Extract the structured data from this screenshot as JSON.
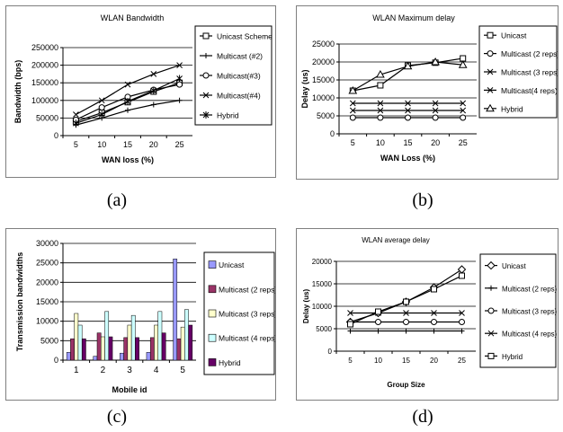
{
  "captions": [
    "(a)",
    "(b)",
    "(c)",
    "(d)"
  ],
  "chart_data": [
    {
      "type": "line",
      "title": "WLAN Bandwidth",
      "xlabel": "WAN loss (%)",
      "ylabel": "Bandwidth (bps)",
      "x": [
        5,
        10,
        15,
        20,
        25
      ],
      "xticks": [
        "5",
        "10",
        "15",
        "20",
        "25"
      ],
      "ylim": [
        0,
        250000
      ],
      "yticks": [
        "0",
        "50000",
        "100000",
        "150000",
        "200000",
        "250000"
      ],
      "grid": true,
      "legend": "right",
      "series": [
        {
          "name": "Unicast Scheme",
          "marker": "square",
          "values": [
            40000,
            65000,
            95000,
            125000,
            150000
          ]
        },
        {
          "name": "Multicast (#2)",
          "marker": "plus",
          "values": [
            30000,
            50000,
            72000,
            88000,
            100000
          ]
        },
        {
          "name": "Multicast(#3)",
          "marker": "circle",
          "values": [
            45000,
            80000,
            110000,
            130000,
            145000
          ]
        },
        {
          "name": "Multicast(#4)",
          "marker": "x",
          "values": [
            60000,
            100000,
            145000,
            175000,
            200000
          ]
        },
        {
          "name": "Hybrid",
          "marker": "star",
          "values": [
            35000,
            60000,
            97000,
            128000,
            162000
          ]
        }
      ]
    },
    {
      "type": "line",
      "title": "WLAN Maximum delay",
      "xlabel": "WAN Loss (%)",
      "ylabel": "Delay (us)",
      "x": [
        5,
        10,
        15,
        20,
        25
      ],
      "xticks": [
        "5",
        "10",
        "15",
        "20",
        "25"
      ],
      "ylim": [
        0,
        25000
      ],
      "yticks": [
        "0",
        "5000",
        "10000",
        "15000",
        "20000",
        "25000"
      ],
      "grid": true,
      "legend": "right",
      "series": [
        {
          "name": "Unicast",
          "marker": "square",
          "values": [
            12000,
            13500,
            19000,
            19800,
            21000
          ]
        },
        {
          "name": "Multicast (2 reps)",
          "marker": "circle",
          "values": [
            4500,
            4500,
            4500,
            4500,
            4500
          ]
        },
        {
          "name": "Multicast (3 reps)",
          "marker": "x",
          "values": [
            8500,
            8500,
            8500,
            8500,
            8500
          ]
        },
        {
          "name": "Multicast(4 reps)",
          "marker": "x",
          "values": [
            6500,
            6500,
            6500,
            6500,
            6500
          ]
        },
        {
          "name": "Hybrid",
          "marker": "triangle",
          "values": [
            12000,
            16500,
            18800,
            20000,
            19200
          ]
        }
      ]
    },
    {
      "type": "bar",
      "title": "",
      "xlabel": "Mobile id",
      "ylabel": "Transmission bandwidths",
      "categories": [
        "1",
        "2",
        "3",
        "4",
        "5"
      ],
      "ylim": [
        0,
        30000
      ],
      "yticks": [
        "0",
        "5000",
        "10000",
        "15000",
        "20000",
        "25000",
        "30000"
      ],
      "grid": true,
      "legend": "right",
      "series": [
        {
          "name": "Unicast",
          "color": "#9999ff",
          "values": [
            2000,
            1000,
            1800,
            2000,
            26000
          ]
        },
        {
          "name": "Multicast (2 reps)",
          "color": "#993366",
          "values": [
            5500,
            7000,
            5800,
            5800,
            5500
          ]
        },
        {
          "name": "Multicast (3 reps)",
          "color": "#ffffcc",
          "values": [
            12000,
            6000,
            9000,
            9000,
            8500
          ]
        },
        {
          "name": "Multicast (4 reps)",
          "color": "#ccffff",
          "values": [
            9000,
            12500,
            11500,
            12500,
            13000
          ]
        },
        {
          "name": "Hybrid",
          "color": "#660066",
          "values": [
            5500,
            6000,
            5800,
            7000,
            9000
          ]
        }
      ]
    },
    {
      "type": "line",
      "title": "WLAN average delay",
      "xlabel": "Group Size",
      "ylabel": "Delay (us)",
      "x": [
        5,
        10,
        15,
        20,
        25
      ],
      "xticks": [
        "5",
        "10",
        "15",
        "20",
        "25"
      ],
      "ylim": [
        0,
        20000
      ],
      "yticks": [
        "0",
        "5000",
        "10000",
        "15000",
        "20000"
      ],
      "grid": true,
      "legend": "right",
      "series": [
        {
          "name": "Unicast",
          "marker": "diamond",
          "values": [
            6500,
            8500,
            11000,
            14200,
            18200
          ]
        },
        {
          "name": "Multicast (2 reps)",
          "marker": "plus",
          "values": [
            4500,
            4500,
            4500,
            4500,
            4500
          ]
        },
        {
          "name": "Multicast (3 reps)",
          "marker": "circle",
          "values": [
            6500,
            6500,
            6500,
            6500,
            6500
          ]
        },
        {
          "name": "Multicast (4 reps)",
          "marker": "x",
          "values": [
            8500,
            8500,
            8500,
            8500,
            8500
          ]
        },
        {
          "name": "Hybrid",
          "marker": "square",
          "values": [
            6000,
            8800,
            11000,
            13800,
            16800
          ]
        }
      ]
    }
  ]
}
